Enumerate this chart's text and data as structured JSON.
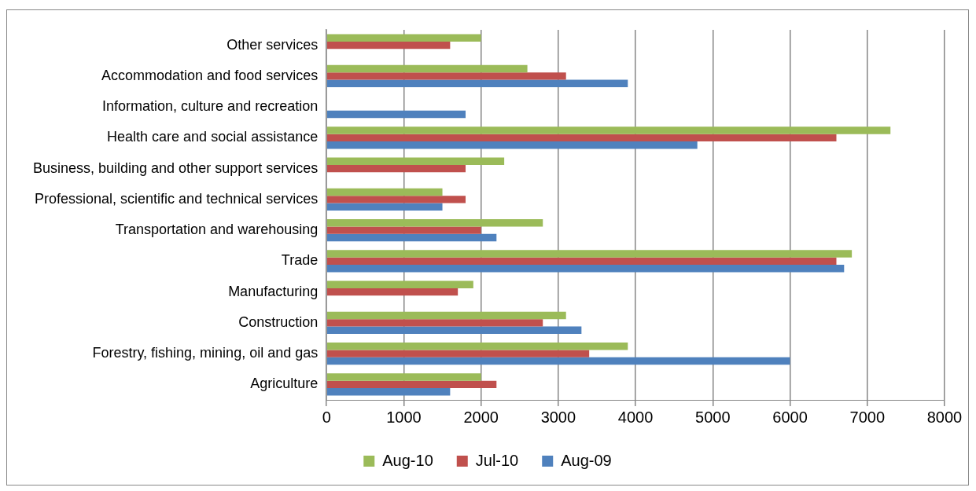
{
  "chart_data": {
    "type": "bar",
    "orientation": "horizontal",
    "categories": [
      "Other services",
      "Accommodation and food services",
      "Information, culture and recreation",
      "Health care and social assistance",
      "Business, building and other support services",
      "Professional, scientific and technical services",
      "Transportation and warehousing",
      "Trade",
      "Manufacturing",
      "Construction",
      "Forestry, fishing, mining, oil and gas",
      "Agriculture"
    ],
    "series": [
      {
        "name": "Aug-10",
        "color": "#9bbb59",
        "values": [
          2000,
          2600,
          null,
          7300,
          2300,
          1500,
          2800,
          6800,
          1900,
          3100,
          3900,
          2000
        ]
      },
      {
        "name": "Jul-10",
        "color": "#c0504d",
        "values": [
          1600,
          3100,
          null,
          6600,
          1800,
          1800,
          2000,
          6600,
          1700,
          2800,
          3400,
          2200
        ]
      },
      {
        "name": "Aug-09",
        "color": "#4f81bd",
        "values": [
          null,
          3900,
          1800,
          4800,
          null,
          1500,
          2200,
          6700,
          null,
          3300,
          6000,
          1600
        ]
      }
    ],
    "xlim": [
      0,
      8000
    ],
    "xticks": [
      0,
      1000,
      2000,
      3000,
      4000,
      5000,
      6000,
      7000,
      8000
    ],
    "grid": "x",
    "legend": "bottom"
  }
}
